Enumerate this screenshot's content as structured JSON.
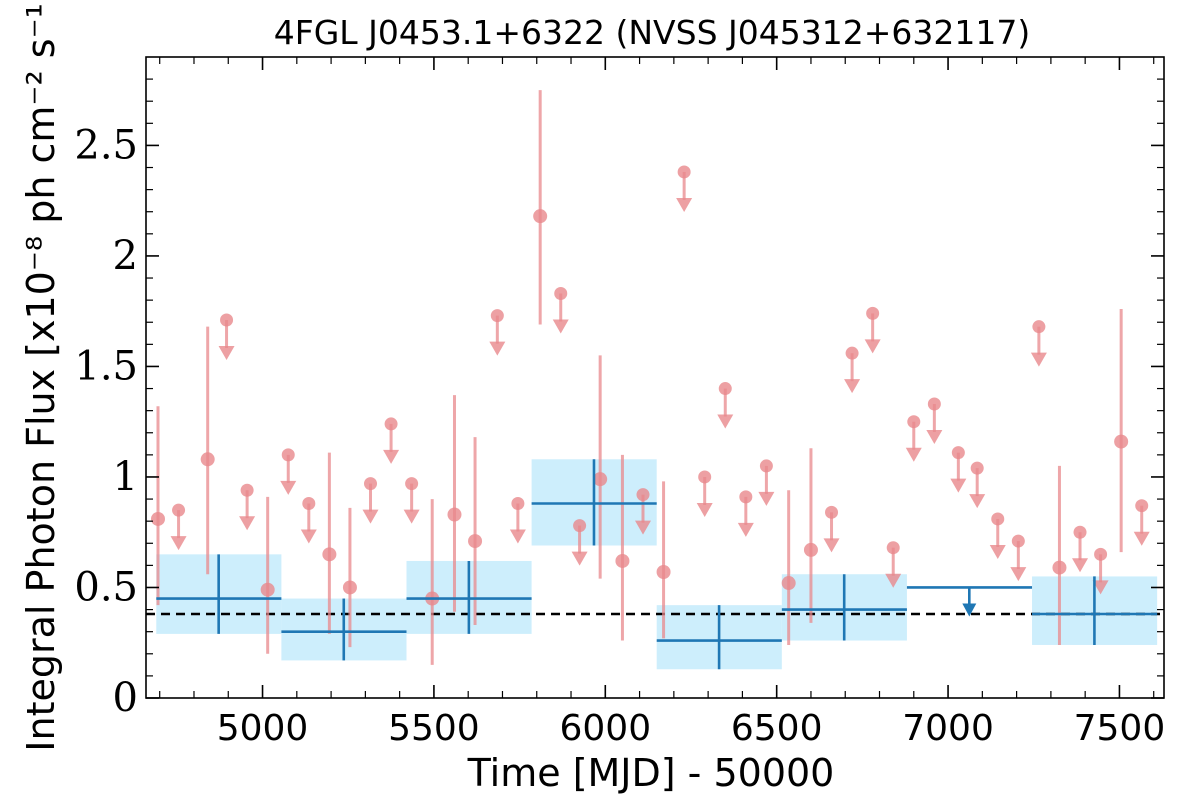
{
  "chart_data": {
    "type": "scatter",
    "title": "4FGL J0453.1+6322 (NVSS J045312+632117)",
    "xlabel": "Time [MJD] - 50000",
    "ylabel": "Integral Photon Flux [x10⁻⁸ ph cm⁻² s⁻¹]",
    "xlim": [
      4660,
      7630
    ],
    "ylim": [
      0,
      2.9
    ],
    "x_ticks": [
      5000,
      5500,
      6000,
      6500,
      7000,
      7500
    ],
    "x_tick_labels": [
      "5000",
      "5500",
      "6000",
      "6500",
      "7000",
      "7500"
    ],
    "y_ticks": [
      0,
      0.5,
      1,
      1.5,
      2,
      2.5
    ],
    "y_tick_labels": [
      "0",
      "0.5",
      "1",
      "1.5",
      "2",
      "2.5"
    ],
    "colors": {
      "short_bin": "#e8888c",
      "long_bin": "#1f77b4",
      "long_bin_band": "#cdeefc",
      "reference": "#000000"
    },
    "reference_line": {
      "y": 0.38,
      "style": "dashed"
    },
    "series": [
      {
        "points": [
          {
            "x": 4695,
            "y": 0.81,
            "ylo": 0.42,
            "yhi": 1.32
          },
          {
            "x": 4840,
            "y": 1.08,
            "ylo": 0.56,
            "yhi": 1.68
          },
          {
            "x": 5015,
            "y": 0.49,
            "ylo": 0.2,
            "yhi": 0.91
          },
          {
            "x": 5195,
            "y": 0.65,
            "ylo": 0.29,
            "yhi": 1.11
          },
          {
            "x": 5255,
            "y": 0.5,
            "ylo": 0.23,
            "yhi": 0.86
          },
          {
            "x": 5495,
            "y": 0.45,
            "ylo": 0.15,
            "yhi": 0.9
          },
          {
            "x": 5560,
            "y": 0.83,
            "ylo": 0.39,
            "yhi": 1.37
          },
          {
            "x": 5620,
            "y": 0.71,
            "ylo": 0.33,
            "yhi": 1.18
          },
          {
            "x": 5810,
            "y": 2.18,
            "ylo": 1.69,
            "yhi": 2.75
          },
          {
            "x": 5985,
            "y": 0.99,
            "ylo": 0.54,
            "yhi": 1.55
          },
          {
            "x": 6050,
            "y": 0.62,
            "ylo": 0.26,
            "yhi": 1.1
          },
          {
            "x": 6170,
            "y": 0.57,
            "ylo": 0.27,
            "yhi": 0.98
          },
          {
            "x": 6535,
            "y": 0.52,
            "ylo": 0.24,
            "yhi": 0.94
          },
          {
            "x": 6600,
            "y": 0.67,
            "ylo": 0.34,
            "yhi": 1.13
          },
          {
            "x": 7325,
            "y": 0.59,
            "ylo": 0.24,
            "yhi": 1.05
          },
          {
            "x": 7505,
            "y": 1.16,
            "ylo": 0.66,
            "yhi": 1.76
          }
        ]
      },
      {
        "upper_limits": [
          {
            "x": 4755,
            "y": 0.85
          },
          {
            "x": 4895,
            "y": 1.71
          },
          {
            "x": 4955,
            "y": 0.94
          },
          {
            "x": 5075,
            "y": 1.1
          },
          {
            "x": 5135,
            "y": 0.88
          },
          {
            "x": 5315,
            "y": 0.97
          },
          {
            "x": 5375,
            "y": 1.24
          },
          {
            "x": 5435,
            "y": 0.97
          },
          {
            "x": 5685,
            "y": 1.73
          },
          {
            "x": 5745,
            "y": 0.88
          },
          {
            "x": 5870,
            "y": 1.83
          },
          {
            "x": 5925,
            "y": 0.78
          },
          {
            "x": 6110,
            "y": 0.92
          },
          {
            "x": 6230,
            "y": 2.38
          },
          {
            "x": 6290,
            "y": 1.0
          },
          {
            "x": 6350,
            "y": 1.4
          },
          {
            "x": 6410,
            "y": 0.91
          },
          {
            "x": 6470,
            "y": 1.05
          },
          {
            "x": 6660,
            "y": 0.84
          },
          {
            "x": 6720,
            "y": 1.56
          },
          {
            "x": 6780,
            "y": 1.74
          },
          {
            "x": 6840,
            "y": 0.68
          },
          {
            "x": 6900,
            "y": 1.25
          },
          {
            "x": 6960,
            "y": 1.33
          },
          {
            "x": 7030,
            "y": 1.11
          },
          {
            "x": 7085,
            "y": 1.04
          },
          {
            "x": 7145,
            "y": 0.81
          },
          {
            "x": 7205,
            "y": 0.71
          },
          {
            "x": 7265,
            "y": 1.68
          },
          {
            "x": 7385,
            "y": 0.75
          },
          {
            "x": 7445,
            "y": 0.65
          },
          {
            "x": 7565,
            "y": 0.87
          }
        ]
      },
      {
        "points": [
          {
            "x0": 4690,
            "x1": 5055,
            "x": 4872,
            "y": 0.45,
            "ylo": 0.29,
            "yhi": 0.65
          },
          {
            "x0": 5055,
            "x1": 5420,
            "x": 5237,
            "y": 0.3,
            "ylo": 0.17,
            "yhi": 0.45
          },
          {
            "x0": 5420,
            "x1": 5785,
            "x": 5602,
            "y": 0.45,
            "ylo": 0.29,
            "yhi": 0.62
          },
          {
            "x0": 5785,
            "x1": 6150,
            "x": 5967,
            "y": 0.88,
            "ylo": 0.69,
            "yhi": 1.08
          },
          {
            "x0": 6150,
            "x1": 6515,
            "x": 6332,
            "y": 0.26,
            "ylo": 0.13,
            "yhi": 0.42
          },
          {
            "x0": 6515,
            "x1": 6880,
            "x": 6697,
            "y": 0.4,
            "ylo": 0.26,
            "yhi": 0.56
          },
          {
            "x0": 7245,
            "x1": 7610,
            "x": 7427,
            "y": 0.38,
            "ylo": 0.24,
            "yhi": 0.55
          }
        ],
        "upper_limits": [
          {
            "x0": 6880,
            "x1": 7245,
            "x": 7062,
            "y": 0.5
          }
        ]
      }
    ]
  }
}
